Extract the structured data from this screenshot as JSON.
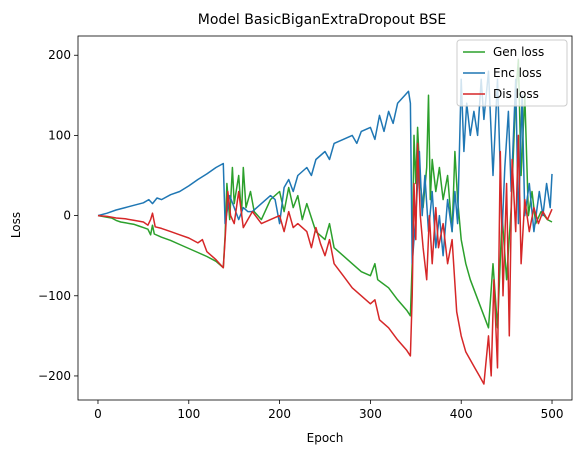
{
  "chart_data": {
    "type": "line",
    "title": "Model BasicBiganExtraDropout BSE",
    "xlabel": "Epoch",
    "ylabel": "Loss",
    "xlim": [
      -22,
      522
    ],
    "ylim": [
      -230,
      224
    ],
    "xticks": [
      0,
      100,
      200,
      300,
      400,
      500
    ],
    "xtick_labels": [
      "0",
      "100",
      "200",
      "300",
      "400",
      "500"
    ],
    "yticks": [
      -200,
      -100,
      0,
      100,
      200
    ],
    "ytick_labels": [
      "−200",
      "−100",
      "0",
      "100",
      "200"
    ],
    "grid": false,
    "legend": {
      "position": "top-right"
    },
    "series": [
      {
        "name": "Gen loss",
        "color": "#2ca02c",
        "points": [
          [
            0,
            0
          ],
          [
            5,
            -1
          ],
          [
            10,
            -2
          ],
          [
            15,
            -3
          ],
          [
            20,
            -6
          ],
          [
            25,
            -8
          ],
          [
            30,
            -9
          ],
          [
            35,
            -10
          ],
          [
            40,
            -11
          ],
          [
            45,
            -13
          ],
          [
            50,
            -15
          ],
          [
            55,
            -17
          ],
          [
            58,
            -24
          ],
          [
            60,
            -12
          ],
          [
            62,
            -23
          ],
          [
            70,
            -27
          ],
          [
            80,
            -31
          ],
          [
            90,
            -36
          ],
          [
            100,
            -41
          ],
          [
            110,
            -46
          ],
          [
            120,
            -51
          ],
          [
            130,
            -57
          ],
          [
            138,
            -65
          ],
          [
            140,
            -25
          ],
          [
            142,
            40
          ],
          [
            145,
            -5
          ],
          [
            148,
            60
          ],
          [
            150,
            15
          ],
          [
            155,
            50
          ],
          [
            158,
            0
          ],
          [
            160,
            60
          ],
          [
            163,
            10
          ],
          [
            168,
            30
          ],
          [
            172,
            5
          ],
          [
            180,
            -5
          ],
          [
            190,
            20
          ],
          [
            200,
            30
          ],
          [
            205,
            5
          ],
          [
            210,
            35
          ],
          [
            215,
            10
          ],
          [
            220,
            25
          ],
          [
            225,
            -5
          ],
          [
            230,
            15
          ],
          [
            240,
            -20
          ],
          [
            250,
            -30
          ],
          [
            255,
            -10
          ],
          [
            260,
            -40
          ],
          [
            270,
            -50
          ],
          [
            280,
            -60
          ],
          [
            290,
            -70
          ],
          [
            300,
            -75
          ],
          [
            305,
            -60
          ],
          [
            308,
            -80
          ],
          [
            320,
            -90
          ],
          [
            330,
            -105
          ],
          [
            340,
            -118
          ],
          [
            344,
            -125
          ],
          [
            346,
            -60
          ],
          [
            348,
            100
          ],
          [
            350,
            40
          ],
          [
            352,
            110
          ],
          [
            355,
            40
          ],
          [
            358,
            10
          ],
          [
            362,
            60
          ],
          [
            364,
            150
          ],
          [
            366,
            20
          ],
          [
            368,
            70
          ],
          [
            372,
            30
          ],
          [
            376,
            60
          ],
          [
            380,
            20
          ],
          [
            385,
            50
          ],
          [
            390,
            -20
          ],
          [
            393,
            80
          ],
          [
            396,
            20
          ],
          [
            400,
            -30
          ],
          [
            405,
            -60
          ],
          [
            410,
            -80
          ],
          [
            420,
            -110
          ],
          [
            430,
            -140
          ],
          [
            435,
            -60
          ],
          [
            440,
            -140
          ],
          [
            445,
            0
          ],
          [
            450,
            -80
          ],
          [
            455,
            10
          ],
          [
            460,
            150
          ],
          [
            463,
            195
          ],
          [
            466,
            50
          ],
          [
            470,
            150
          ],
          [
            474,
            0
          ],
          [
            478,
            30
          ],
          [
            482,
            -10
          ],
          [
            488,
            5
          ],
          [
            495,
            -5
          ],
          [
            500,
            -8
          ]
        ]
      },
      {
        "name": "Enc loss",
        "color": "#1f77b4",
        "points": [
          [
            0,
            0
          ],
          [
            10,
            3
          ],
          [
            20,
            7
          ],
          [
            30,
            10
          ],
          [
            40,
            13
          ],
          [
            50,
            16
          ],
          [
            56,
            20
          ],
          [
            60,
            15
          ],
          [
            65,
            22
          ],
          [
            70,
            20
          ],
          [
            80,
            26
          ],
          [
            90,
            30
          ],
          [
            100,
            37
          ],
          [
            110,
            45
          ],
          [
            120,
            52
          ],
          [
            130,
            60
          ],
          [
            138,
            65
          ],
          [
            140,
            -10
          ],
          [
            145,
            25
          ],
          [
            150,
            10
          ],
          [
            155,
            -5
          ],
          [
            160,
            10
          ],
          [
            165,
            5
          ],
          [
            170,
            5
          ],
          [
            180,
            15
          ],
          [
            190,
            25
          ],
          [
            195,
            20
          ],
          [
            200,
            -10
          ],
          [
            205,
            35
          ],
          [
            210,
            45
          ],
          [
            215,
            30
          ],
          [
            220,
            50
          ],
          [
            230,
            60
          ],
          [
            235,
            50
          ],
          [
            240,
            70
          ],
          [
            250,
            80
          ],
          [
            255,
            70
          ],
          [
            260,
            90
          ],
          [
            270,
            95
          ],
          [
            280,
            100
          ],
          [
            285,
            90
          ],
          [
            290,
            105
          ],
          [
            300,
            110
          ],
          [
            305,
            95
          ],
          [
            310,
            125
          ],
          [
            315,
            105
          ],
          [
            320,
            130
          ],
          [
            325,
            115
          ],
          [
            330,
            140
          ],
          [
            338,
            150
          ],
          [
            342,
            155
          ],
          [
            344,
            140
          ],
          [
            346,
            -60
          ],
          [
            350,
            0
          ],
          [
            354,
            80
          ],
          [
            357,
            0
          ],
          [
            360,
            50
          ],
          [
            364,
            -20
          ],
          [
            368,
            30
          ],
          [
            372,
            -40
          ],
          [
            376,
            0
          ],
          [
            380,
            -50
          ],
          [
            385,
            20
          ],
          [
            390,
            -20
          ],
          [
            393,
            30
          ],
          [
            396,
            -10
          ],
          [
            400,
            170
          ],
          [
            403,
            80
          ],
          [
            406,
            140
          ],
          [
            410,
            100
          ],
          [
            414,
            130
          ],
          [
            418,
            100
          ],
          [
            422,
            170
          ],
          [
            425,
            120
          ],
          [
            430,
            180
          ],
          [
            435,
            50
          ],
          [
            440,
            170
          ],
          [
            445,
            -20
          ],
          [
            448,
            60
          ],
          [
            452,
            130
          ],
          [
            455,
            30
          ],
          [
            460,
            170
          ],
          [
            463,
            -10
          ],
          [
            467,
            150
          ],
          [
            470,
            0
          ],
          [
            475,
            40
          ],
          [
            480,
            -20
          ],
          [
            486,
            30
          ],
          [
            490,
            0
          ],
          [
            494,
            40
          ],
          [
            498,
            10
          ],
          [
            500,
            52
          ]
        ]
      },
      {
        "name": "Dis loss",
        "color": "#d62728",
        "points": [
          [
            0,
            0
          ],
          [
            10,
            -1
          ],
          [
            20,
            -3
          ],
          [
            30,
            -4
          ],
          [
            40,
            -6
          ],
          [
            50,
            -8
          ],
          [
            55,
            -12
          ],
          [
            58,
            -5
          ],
          [
            60,
            3
          ],
          [
            63,
            -14
          ],
          [
            70,
            -16
          ],
          [
            80,
            -20
          ],
          [
            90,
            -24
          ],
          [
            100,
            -28
          ],
          [
            110,
            -34
          ],
          [
            115,
            -30
          ],
          [
            120,
            -45
          ],
          [
            130,
            -55
          ],
          [
            138,
            -65
          ],
          [
            140,
            -30
          ],
          [
            143,
            30
          ],
          [
            146,
            0
          ],
          [
            150,
            -10
          ],
          [
            155,
            30
          ],
          [
            160,
            -15
          ],
          [
            165,
            -5
          ],
          [
            170,
            5
          ],
          [
            180,
            -10
          ],
          [
            190,
            -5
          ],
          [
            200,
            0
          ],
          [
            205,
            -20
          ],
          [
            210,
            5
          ],
          [
            215,
            -15
          ],
          [
            220,
            -10
          ],
          [
            230,
            -20
          ],
          [
            235,
            -40
          ],
          [
            240,
            -15
          ],
          [
            245,
            -35
          ],
          [
            250,
            -50
          ],
          [
            255,
            -30
          ],
          [
            260,
            -60
          ],
          [
            270,
            -75
          ],
          [
            280,
            -90
          ],
          [
            290,
            -100
          ],
          [
            300,
            -110
          ],
          [
            305,
            -105
          ],
          [
            310,
            -130
          ],
          [
            320,
            -140
          ],
          [
            330,
            -155
          ],
          [
            340,
            -168
          ],
          [
            344,
            -175
          ],
          [
            346,
            -100
          ],
          [
            348,
            40
          ],
          [
            350,
            -30
          ],
          [
            352,
            90
          ],
          [
            355,
            0
          ],
          [
            358,
            -40
          ],
          [
            362,
            -80
          ],
          [
            365,
            0
          ],
          [
            368,
            -60
          ],
          [
            372,
            10
          ],
          [
            375,
            -40
          ],
          [
            380,
            -10
          ],
          [
            385,
            -60
          ],
          [
            390,
            -30
          ],
          [
            395,
            -120
          ],
          [
            400,
            -150
          ],
          [
            405,
            -170
          ],
          [
            410,
            -180
          ],
          [
            415,
            -190
          ],
          [
            420,
            -200
          ],
          [
            425,
            -210
          ],
          [
            430,
            -150
          ],
          [
            433,
            -200
          ],
          [
            436,
            -80
          ],
          [
            440,
            -190
          ],
          [
            443,
            80
          ],
          [
            446,
            -100
          ],
          [
            450,
            40
          ],
          [
            453,
            -150
          ],
          [
            456,
            70
          ],
          [
            460,
            -20
          ],
          [
            463,
            100
          ],
          [
            466,
            -60
          ],
          [
            470,
            20
          ],
          [
            475,
            -20
          ],
          [
            480,
            10
          ],
          [
            485,
            -10
          ],
          [
            490,
            5
          ],
          [
            495,
            -5
          ],
          [
            500,
            8
          ]
        ]
      }
    ]
  }
}
